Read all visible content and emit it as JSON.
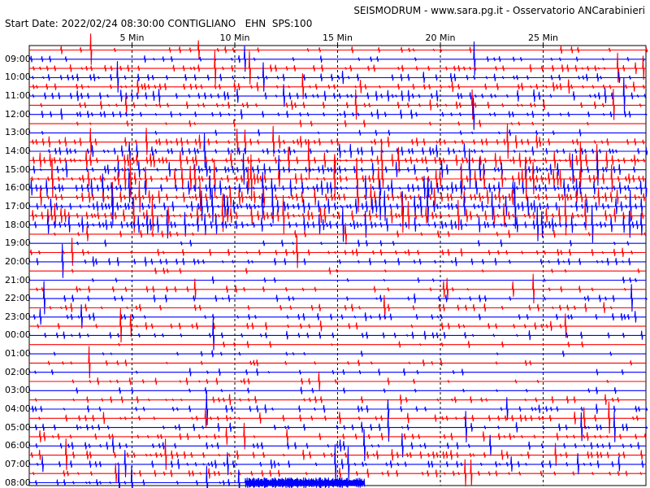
{
  "header": {
    "station": "SEISMODRUM - www.sara.pg.it - Osservatorio ANCarabinieri",
    "start_prefix": "Start Date:",
    "start_date": "2022/02/24 08:30:00",
    "site": "CONTIGLIANO",
    "channel": "EHN",
    "sps": "SPS:100"
  },
  "colors": {
    "trace_a": "#ff0000",
    "trace_b": "#0000ff",
    "grid": "#000000",
    "frame": "#000000"
  },
  "chart_data": {
    "type": "line",
    "title": "",
    "xlabel": "",
    "ylabel": "",
    "x_unit": "min",
    "xlim": [
      0,
      29.5
    ],
    "minute_ticks": [
      5,
      10,
      15,
      20,
      25
    ],
    "minute_tick_labels": [
      "5 Min",
      "10 Min",
      "15 Min",
      "20 Min",
      "25 Min"
    ],
    "grid": "vertical dashed every 5 min",
    "hour_labels": [
      "09:00",
      "10:00",
      "11:00",
      "12:00",
      "13:00",
      "14:00",
      "15:00",
      "16:00",
      "17:00",
      "18:00",
      "19:00",
      "20:00",
      "21:00",
      "22:00",
      "23:00",
      "00:00",
      "01:00",
      "02:00",
      "03:00",
      "04:00",
      "05:00",
      "06:00",
      "07:00",
      "08:00"
    ],
    "traces_per_hour": 2,
    "trace_color_pattern": [
      "red",
      "blue"
    ],
    "activity_by_hour": [
      0.25,
      0.55,
      0.65,
      0.45,
      0.05,
      0.7,
      0.9,
      1.0,
      1.0,
      0.95,
      0.2,
      0.45,
      0.05,
      0.35,
      0.4,
      0.35,
      0.05,
      0.2,
      0.15,
      0.4,
      0.45,
      0.5,
      0.6,
      0.4
    ],
    "last_trace_end_min": 16.3,
    "burst": {
      "start_min": 10.5,
      "end_min": 16.3,
      "hour": "08:00"
    }
  }
}
